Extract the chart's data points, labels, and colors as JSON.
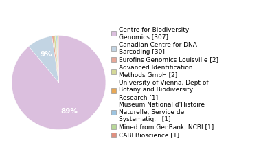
{
  "labels": [
    "Centre for Biodiversity\nGenomics [307]",
    "Canadian Centre for DNA\nBarcoding [30]",
    "Eurofins Genomics Louisville [2]",
    "Advanced Identification\nMethods GmbH [2]",
    "University of Vienna, Dept of\nBotany and Biodiversity\nResearch [1]",
    "Museum National d'Histoire\nNaturelle, Service de\nSystematiq... [1]",
    "Mined from GenBank, NCBI [1]",
    "CABI Bioscience [1]"
  ],
  "values": [
    307,
    30,
    2,
    2,
    1,
    1,
    1,
    1
  ],
  "colors": [
    "#dbbfde",
    "#c2d4e3",
    "#e8a898",
    "#d4d898",
    "#e8a855",
    "#9dc4e0",
    "#b8d898",
    "#e09080"
  ],
  "background_color": "#ffffff",
  "fontsize": 6.5
}
